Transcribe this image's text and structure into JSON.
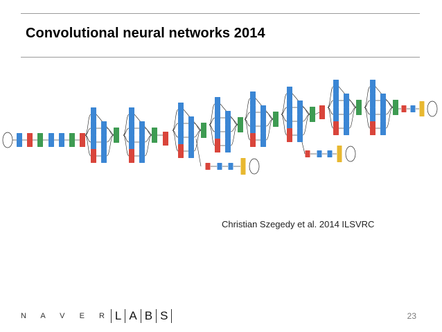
{
  "slide": {
    "title": "Convolutional neural networks 2014",
    "citation": "Christian Szegedy et al. 2014 ILSVRC",
    "page_number": "23"
  },
  "logo": {
    "company": "N A V E R",
    "labs_letters": [
      "L",
      "A",
      "B",
      "S"
    ]
  },
  "diagram": {
    "colors": {
      "conv": "#3b86d4",
      "pool": "#d9453b",
      "concat": "#3e9b52",
      "softmax": "#e8b830",
      "edge": "#222222"
    }
  }
}
